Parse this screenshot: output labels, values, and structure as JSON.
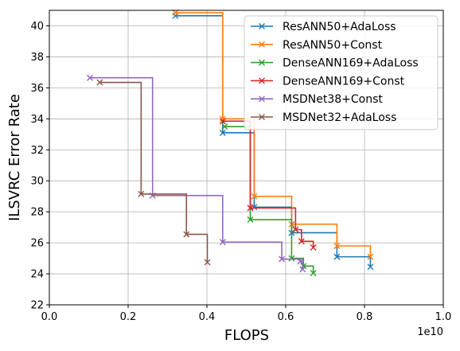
{
  "chart_data": {
    "type": "line",
    "step": "post",
    "xlabel": "FLOPS",
    "ylabel": "ILSVRC Error Rate",
    "x_offset_label": "1e10",
    "xlim": [
      0,
      1.0
    ],
    "ylim": [
      22,
      41
    ],
    "xticks": [
      "0.0",
      "0.2",
      "0.4",
      "0.6",
      "0.8",
      "1.0"
    ],
    "yticks": [
      "22",
      "24",
      "26",
      "28",
      "30",
      "32",
      "34",
      "36",
      "38",
      "40"
    ],
    "grid": true,
    "legend_position": "top-right",
    "series": [
      {
        "name": "ResANN50+AdaLoss",
        "color": "#1f77b4",
        "x": [
          0.32,
          0.44,
          0.52,
          0.615,
          0.73,
          0.815
        ],
        "y": [
          40.65,
          33.1,
          28.3,
          26.65,
          25.1,
          24.45
        ]
      },
      {
        "name": "ResANN50+Const",
        "color": "#ff7f0e",
        "x": [
          0.32,
          0.44,
          0.52,
          0.615,
          0.73,
          0.815
        ],
        "y": [
          40.85,
          34.0,
          29.0,
          27.2,
          25.8,
          25.1
        ]
      },
      {
        "name": "DenseANN169+AdaLoss",
        "color": "#2ca02c",
        "x": [
          0.445,
          0.51,
          0.615,
          0.645,
          0.67
        ],
        "y": [
          33.5,
          27.5,
          25.0,
          24.5,
          24.05
        ]
      },
      {
        "name": "DenseANN169+Const",
        "color": "#d62728",
        "x": [
          0.44,
          0.51,
          0.625,
          0.64,
          0.67
        ],
        "y": [
          33.85,
          28.25,
          26.85,
          26.1,
          25.7
        ]
      },
      {
        "name": "MSDNet38+Const",
        "color": "#9467bd",
        "x": [
          0.103,
          0.262,
          0.44,
          0.59,
          0.637,
          0.643
        ],
        "y": [
          36.65,
          29.05,
          26.05,
          24.95,
          24.8,
          24.3
        ]
      },
      {
        "name": "MSDNet32+AdaLoss",
        "color": "#8c564b",
        "x": [
          0.128,
          0.233,
          0.348,
          0.401
        ],
        "y": [
          36.35,
          29.15,
          26.55,
          24.75
        ]
      }
    ]
  }
}
